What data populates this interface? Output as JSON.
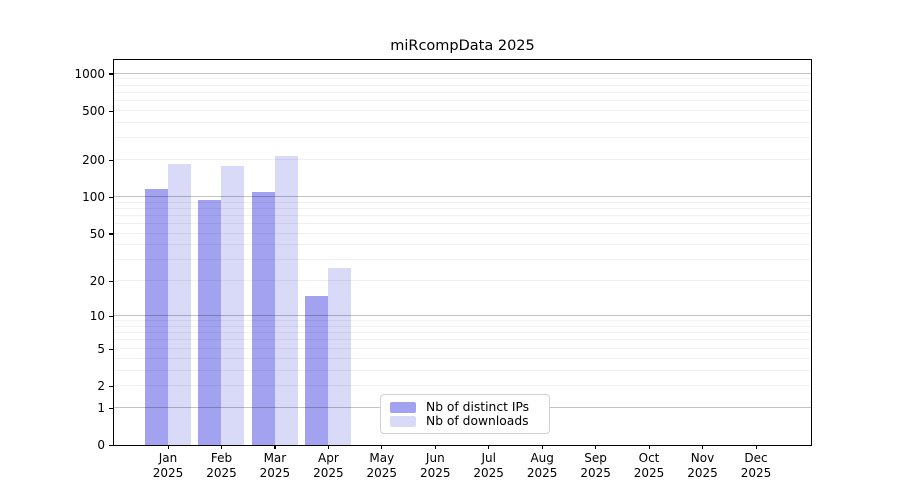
{
  "chart_data": {
    "type": "bar",
    "title": "miRcompData 2025",
    "categories": [
      "Jan 2025",
      "Feb 2025",
      "Mar 2025",
      "Apr 2025",
      "May 2025",
      "Jun 2025",
      "Jul 2025",
      "Aug 2025",
      "Sep 2025",
      "Oct 2025",
      "Nov 2025",
      "Dec 2025"
    ],
    "series": [
      {
        "name": "Nb of distinct IPs",
        "color": "#a2a2f0",
        "values": [
          115,
          95,
          110,
          15,
          0,
          0,
          0,
          0,
          0,
          0,
          0,
          0
        ]
      },
      {
        "name": "Nb of downloads",
        "color": "#d9d9f8",
        "values": [
          185,
          180,
          215,
          26,
          0,
          0,
          0,
          0,
          0,
          0,
          0,
          0
        ]
      }
    ],
    "yscale": "log10(value+1)",
    "yticks": [
      0,
      1,
      2,
      5,
      10,
      20,
      50,
      100,
      200,
      500,
      1000
    ],
    "ylim": [
      0,
      1290
    ],
    "grid": true,
    "gridlines_major_at": [
      1,
      10,
      100,
      1000
    ],
    "legend_position": "lower center"
  },
  "colors": {
    "bar_distinct_ips": "#a2a2f0",
    "bar_downloads": "#d9d9f8",
    "grid_major": "#c2c2c2",
    "grid_minor": "#f0f0f0",
    "axis": "#000000",
    "legend_border": "#d2d2d2",
    "background": "#ffffff"
  }
}
